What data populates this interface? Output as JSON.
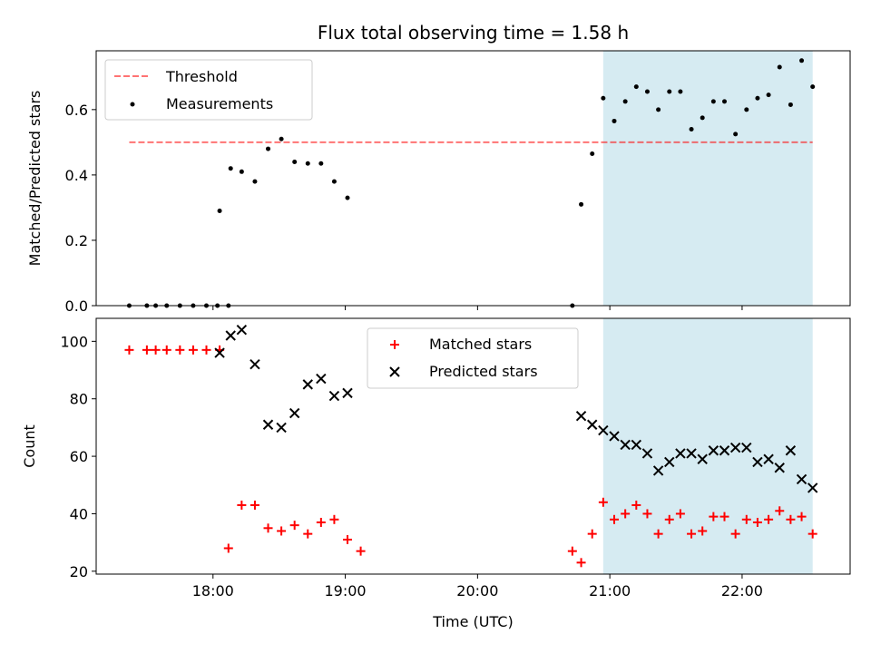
{
  "chart_data": [
    {
      "type": "scatter",
      "title": "Flux total observing time = 1.58 h",
      "ylabel": "Matched/Predicted stars",
      "xlim": [
        "17:07",
        "22:49"
      ],
      "ylim": [
        0,
        0.78
      ],
      "grid": false,
      "legend_position": "top-left",
      "x_ticks": [
        "18:00",
        "19:00",
        "20:00",
        "21:00",
        "22:00"
      ],
      "y_ticks": [
        "0.0",
        "0.2",
        "0.4",
        "0.6"
      ],
      "highlight_span": {
        "from": "20:57",
        "to": "22:32",
        "color": "#add8e6"
      },
      "threshold": {
        "name": "Threshold",
        "y": 0.5,
        "from": "17:22",
        "to": "22:32",
        "color": "#ff0000"
      },
      "series": [
        {
          "name": "Measurements",
          "color": "#000000",
          "points": [
            [
              "17:22",
              0.0
            ],
            [
              "17:30",
              0.0
            ],
            [
              "17:34",
              0.0
            ],
            [
              "17:39",
              0.0
            ],
            [
              "17:45",
              0.0
            ],
            [
              "17:51",
              0.0
            ],
            [
              "17:57",
              0.0
            ],
            [
              "18:02",
              0.0
            ],
            [
              "18:03",
              0.29
            ],
            [
              "18:07",
              0.0
            ],
            [
              "18:08",
              0.42
            ],
            [
              "18:13",
              0.41
            ],
            [
              "18:19",
              0.38
            ],
            [
              "18:25",
              0.48
            ],
            [
              "18:31",
              0.51
            ],
            [
              "18:37",
              0.44
            ],
            [
              "18:43",
              0.435
            ],
            [
              "18:49",
              0.435
            ],
            [
              "18:55",
              0.38
            ],
            [
              "19:01",
              0.33
            ],
            [
              "20:43",
              0.0
            ],
            [
              "20:47",
              0.31
            ],
            [
              "20:52",
              0.465
            ],
            [
              "20:57",
              0.635
            ],
            [
              "21:02",
              0.565
            ],
            [
              "21:07",
              0.625
            ],
            [
              "21:12",
              0.67
            ],
            [
              "21:17",
              0.655
            ],
            [
              "21:22",
              0.6
            ],
            [
              "21:27",
              0.655
            ],
            [
              "21:32",
              0.655
            ],
            [
              "21:37",
              0.54
            ],
            [
              "21:42",
              0.575
            ],
            [
              "21:47",
              0.625
            ],
            [
              "21:52",
              0.625
            ],
            [
              "21:57",
              0.525
            ],
            [
              "22:02",
              0.6
            ],
            [
              "22:07",
              0.635
            ],
            [
              "22:12",
              0.645
            ],
            [
              "22:17",
              0.73
            ],
            [
              "22:22",
              0.615
            ],
            [
              "22:27",
              0.75
            ],
            [
              "22:32",
              0.67
            ]
          ]
        }
      ]
    },
    {
      "type": "scatter",
      "title": "",
      "xlabel": "Time (UTC)",
      "ylabel": "Count",
      "xlim": [
        "17:07",
        "22:49"
      ],
      "ylim": [
        19,
        108
      ],
      "grid": false,
      "legend_position": "top-center",
      "x_ticks": [
        "18:00",
        "19:00",
        "20:00",
        "21:00",
        "22:00"
      ],
      "y_ticks": [
        "20",
        "40",
        "60",
        "80",
        "100"
      ],
      "highlight_span": {
        "from": "20:57",
        "to": "22:32",
        "color": "#add8e6"
      },
      "series": [
        {
          "name": "Matched stars",
          "marker": "plus",
          "color": "#ff0000",
          "points": [
            [
              "17:22",
              97
            ],
            [
              "17:30",
              97
            ],
            [
              "17:34",
              97
            ],
            [
              "17:39",
              97
            ],
            [
              "17:45",
              97
            ],
            [
              "17:51",
              97
            ],
            [
              "17:57",
              97
            ],
            [
              "18:03",
              97
            ],
            [
              "18:07",
              28
            ],
            [
              "18:13",
              43
            ],
            [
              "18:19",
              43
            ],
            [
              "18:25",
              35
            ],
            [
              "18:31",
              34
            ],
            [
              "18:37",
              36
            ],
            [
              "18:43",
              33
            ],
            [
              "18:49",
              37
            ],
            [
              "18:55",
              38
            ],
            [
              "19:01",
              31
            ],
            [
              "19:07",
              27
            ],
            [
              "20:43",
              27
            ],
            [
              "20:47",
              23
            ],
            [
              "20:52",
              33
            ],
            [
              "20:57",
              44
            ],
            [
              "21:02",
              38
            ],
            [
              "21:07",
              40
            ],
            [
              "21:12",
              43
            ],
            [
              "21:17",
              40
            ],
            [
              "21:22",
              33
            ],
            [
              "21:27",
              38
            ],
            [
              "21:32",
              40
            ],
            [
              "21:37",
              33
            ],
            [
              "21:42",
              34
            ],
            [
              "21:47",
              39
            ],
            [
              "21:52",
              39
            ],
            [
              "21:57",
              33
            ],
            [
              "22:02",
              38
            ],
            [
              "22:07",
              37
            ],
            [
              "22:12",
              38
            ],
            [
              "22:17",
              41
            ],
            [
              "22:22",
              38
            ],
            [
              "22:27",
              39
            ],
            [
              "22:32",
              33
            ]
          ]
        },
        {
          "name": "Predicted stars",
          "marker": "x",
          "color": "#000000",
          "points": [
            [
              "18:03",
              96
            ],
            [
              "18:08",
              102
            ],
            [
              "18:13",
              104
            ],
            [
              "18:19",
              92
            ],
            [
              "18:25",
              71
            ],
            [
              "18:31",
              70
            ],
            [
              "18:37",
              75
            ],
            [
              "18:43",
              85
            ],
            [
              "18:49",
              87
            ],
            [
              "18:55",
              81
            ],
            [
              "19:01",
              82
            ],
            [
              "20:47",
              74
            ],
            [
              "20:52",
              71
            ],
            [
              "20:57",
              69
            ],
            [
              "21:02",
              67
            ],
            [
              "21:07",
              64
            ],
            [
              "21:12",
              64
            ],
            [
              "21:17",
              61
            ],
            [
              "21:22",
              55
            ],
            [
              "21:27",
              58
            ],
            [
              "21:32",
              61
            ],
            [
              "21:37",
              61
            ],
            [
              "21:42",
              59
            ],
            [
              "21:47",
              62
            ],
            [
              "21:52",
              62
            ],
            [
              "21:57",
              63
            ],
            [
              "22:02",
              63
            ],
            [
              "22:07",
              58
            ],
            [
              "22:12",
              59
            ],
            [
              "22:17",
              56
            ],
            [
              "22:22",
              62
            ],
            [
              "22:27",
              52
            ],
            [
              "22:32",
              49
            ]
          ]
        }
      ]
    }
  ]
}
